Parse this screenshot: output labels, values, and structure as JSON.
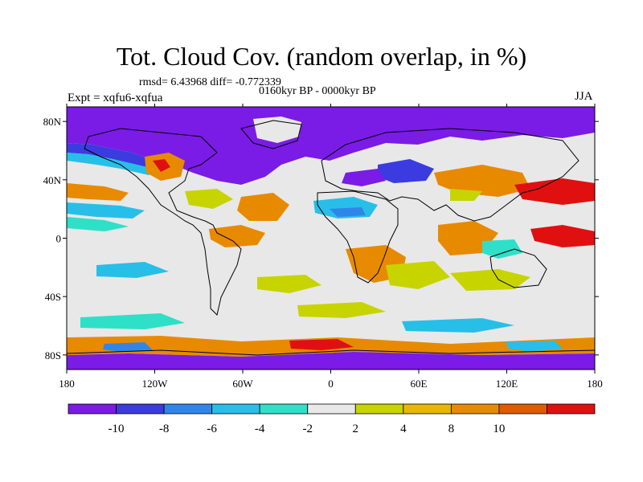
{
  "title": "Tot. Cloud Cov. (random overlap, in %)",
  "stats": "rmsd= 6.43968 diff= -0.772339",
  "period": "0160kyr BP - 0000kyr BP",
  "experiment": "Expt = xqfu6-xqfua",
  "season": "JJA",
  "map": {
    "projection": "cylindrical-equidistant",
    "lon_range": [
      -180,
      180
    ],
    "lat_range": [
      -90,
      90
    ],
    "x_ticks": [
      {
        "value": -180,
        "label": "180"
      },
      {
        "value": -120,
        "label": "120W"
      },
      {
        "value": -60,
        "label": "60W"
      },
      {
        "value": 0,
        "label": "0"
      },
      {
        "value": 60,
        "label": "60E"
      },
      {
        "value": 120,
        "label": "120E"
      },
      {
        "value": 180,
        "label": "180"
      }
    ],
    "y_ticks": [
      {
        "value": 80,
        "label": "80N"
      },
      {
        "value": 40,
        "label": "40N"
      },
      {
        "value": 0,
        "label": "0"
      },
      {
        "value": -40,
        "label": "40S"
      },
      {
        "value": -80,
        "label": "80S"
      }
    ]
  },
  "colorbar": {
    "colors": [
      "#7b1be6",
      "#3b3be0",
      "#2f86e8",
      "#27bfe8",
      "#2ee0c8",
      "#e8e8e8",
      "#c8d400",
      "#e8b800",
      "#e88a00",
      "#e05a00",
      "#e01010"
    ],
    "labels": [
      "-10",
      "-8",
      "-6",
      "-4",
      "-2",
      "2",
      "4",
      "8",
      "10"
    ]
  }
}
